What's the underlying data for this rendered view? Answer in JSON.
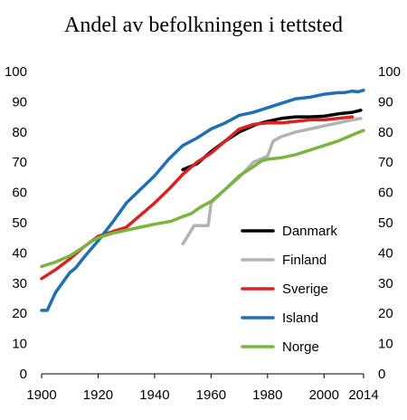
{
  "chart_data": {
    "type": "line",
    "title": "Andel av befolkningen i tettsted",
    "xlabel": "",
    "ylabel": "",
    "xlim": [
      1900,
      2014
    ],
    "ylim": [
      0,
      100
    ],
    "x_ticks": [
      "1900",
      "1920",
      "1940",
      "1960",
      "1980",
      "2000",
      "2014"
    ],
    "y_ticks": [
      "0",
      "10",
      "20",
      "30",
      "40",
      "50",
      "60",
      "70",
      "80",
      "90",
      "100"
    ],
    "y_ticks_right": [
      "0",
      "10",
      "20",
      "30",
      "40",
      "50",
      "60",
      "70",
      "80",
      "90",
      "100"
    ],
    "legend_position": "center-right",
    "series": [
      {
        "name": "Danmark",
        "color": "#000000",
        "points": [
          [
            1950,
            67.5
          ],
          [
            1955,
            69.5
          ],
          [
            1960,
            73.5
          ],
          [
            1965,
            77
          ],
          [
            1970,
            80
          ],
          [
            1976,
            82.5
          ],
          [
            1980,
            83.5
          ],
          [
            1985,
            84.5
          ],
          [
            1990,
            85
          ],
          [
            1995,
            85
          ],
          [
            2000,
            85.2
          ],
          [
            2005,
            86
          ],
          [
            2010,
            86.5
          ],
          [
            2013,
            87.2
          ]
        ]
      },
      {
        "name": "Finland",
        "color": "#b3b3b3",
        "points": [
          [
            1950,
            43
          ],
          [
            1952,
            46
          ],
          [
            1954,
            49
          ],
          [
            1958,
            49
          ],
          [
            1959,
            49
          ],
          [
            1960,
            56.5
          ],
          [
            1965,
            61
          ],
          [
            1970,
            65
          ],
          [
            1975,
            70
          ],
          [
            1980,
            72
          ],
          [
            1982,
            77
          ],
          [
            1985,
            78.5
          ],
          [
            1990,
            80
          ],
          [
            1995,
            81
          ],
          [
            2000,
            82
          ],
          [
            2005,
            83
          ],
          [
            2010,
            84
          ],
          [
            2013,
            84.5
          ]
        ]
      },
      {
        "name": "Sverige",
        "color": "#d92323",
        "points": [
          [
            1900,
            31.5
          ],
          [
            1905,
            34.5
          ],
          [
            1910,
            38
          ],
          [
            1915,
            42
          ],
          [
            1920,
            45.5
          ],
          [
            1925,
            47
          ],
          [
            1930,
            48.5
          ],
          [
            1935,
            52.5
          ],
          [
            1940,
            56.5
          ],
          [
            1945,
            61
          ],
          [
            1950,
            66
          ],
          [
            1955,
            70
          ],
          [
            1960,
            73
          ],
          [
            1965,
            77
          ],
          [
            1970,
            81
          ],
          [
            1975,
            82.5
          ],
          [
            1980,
            83
          ],
          [
            1985,
            83
          ],
          [
            1990,
            83.5
          ],
          [
            1995,
            84
          ],
          [
            2000,
            84
          ],
          [
            2005,
            84.5
          ],
          [
            2010,
            85
          ]
        ]
      },
      {
        "name": "Island",
        "color": "#1f6fb4",
        "points": [
          [
            1900,
            21
          ],
          [
            1902,
            21
          ],
          [
            1905,
            27
          ],
          [
            1910,
            33.5
          ],
          [
            1912,
            35
          ],
          [
            1915,
            38.5
          ],
          [
            1920,
            44
          ],
          [
            1925,
            50
          ],
          [
            1930,
            56.5
          ],
          [
            1935,
            61
          ],
          [
            1940,
            65.5
          ],
          [
            1945,
            71
          ],
          [
            1950,
            75.5
          ],
          [
            1955,
            78
          ],
          [
            1960,
            81
          ],
          [
            1965,
            83
          ],
          [
            1970,
            85.5
          ],
          [
            1975,
            86.5
          ],
          [
            1980,
            88
          ],
          [
            1985,
            89.5
          ],
          [
            1990,
            91
          ],
          [
            1995,
            91.5
          ],
          [
            2000,
            92.5
          ],
          [
            2005,
            93
          ],
          [
            2007,
            93
          ],
          [
            2010,
            93.5
          ],
          [
            2012,
            93.3
          ],
          [
            2014,
            93.8
          ]
        ]
      },
      {
        "name": "Norge",
        "color": "#7ab53f",
        "points": [
          [
            1900,
            35.5
          ],
          [
            1905,
            37
          ],
          [
            1910,
            39
          ],
          [
            1915,
            42
          ],
          [
            1918,
            44
          ],
          [
            1920,
            45
          ],
          [
            1925,
            46.5
          ],
          [
            1930,
            47.5
          ],
          [
            1935,
            48.5
          ],
          [
            1940,
            49.5
          ],
          [
            1946,
            50.5
          ],
          [
            1950,
            52
          ],
          [
            1953,
            53
          ],
          [
            1956,
            55
          ],
          [
            1960,
            57
          ],
          [
            1965,
            61
          ],
          [
            1970,
            65.5
          ],
          [
            1975,
            68.5
          ],
          [
            1978,
            70.5
          ],
          [
            1980,
            71
          ],
          [
            1985,
            71.5
          ],
          [
            1990,
            72.5
          ],
          [
            1995,
            74
          ],
          [
            2000,
            75.5
          ],
          [
            2005,
            77
          ],
          [
            2010,
            79
          ],
          [
            2012,
            79.8
          ],
          [
            2014,
            80.5
          ]
        ]
      }
    ]
  }
}
